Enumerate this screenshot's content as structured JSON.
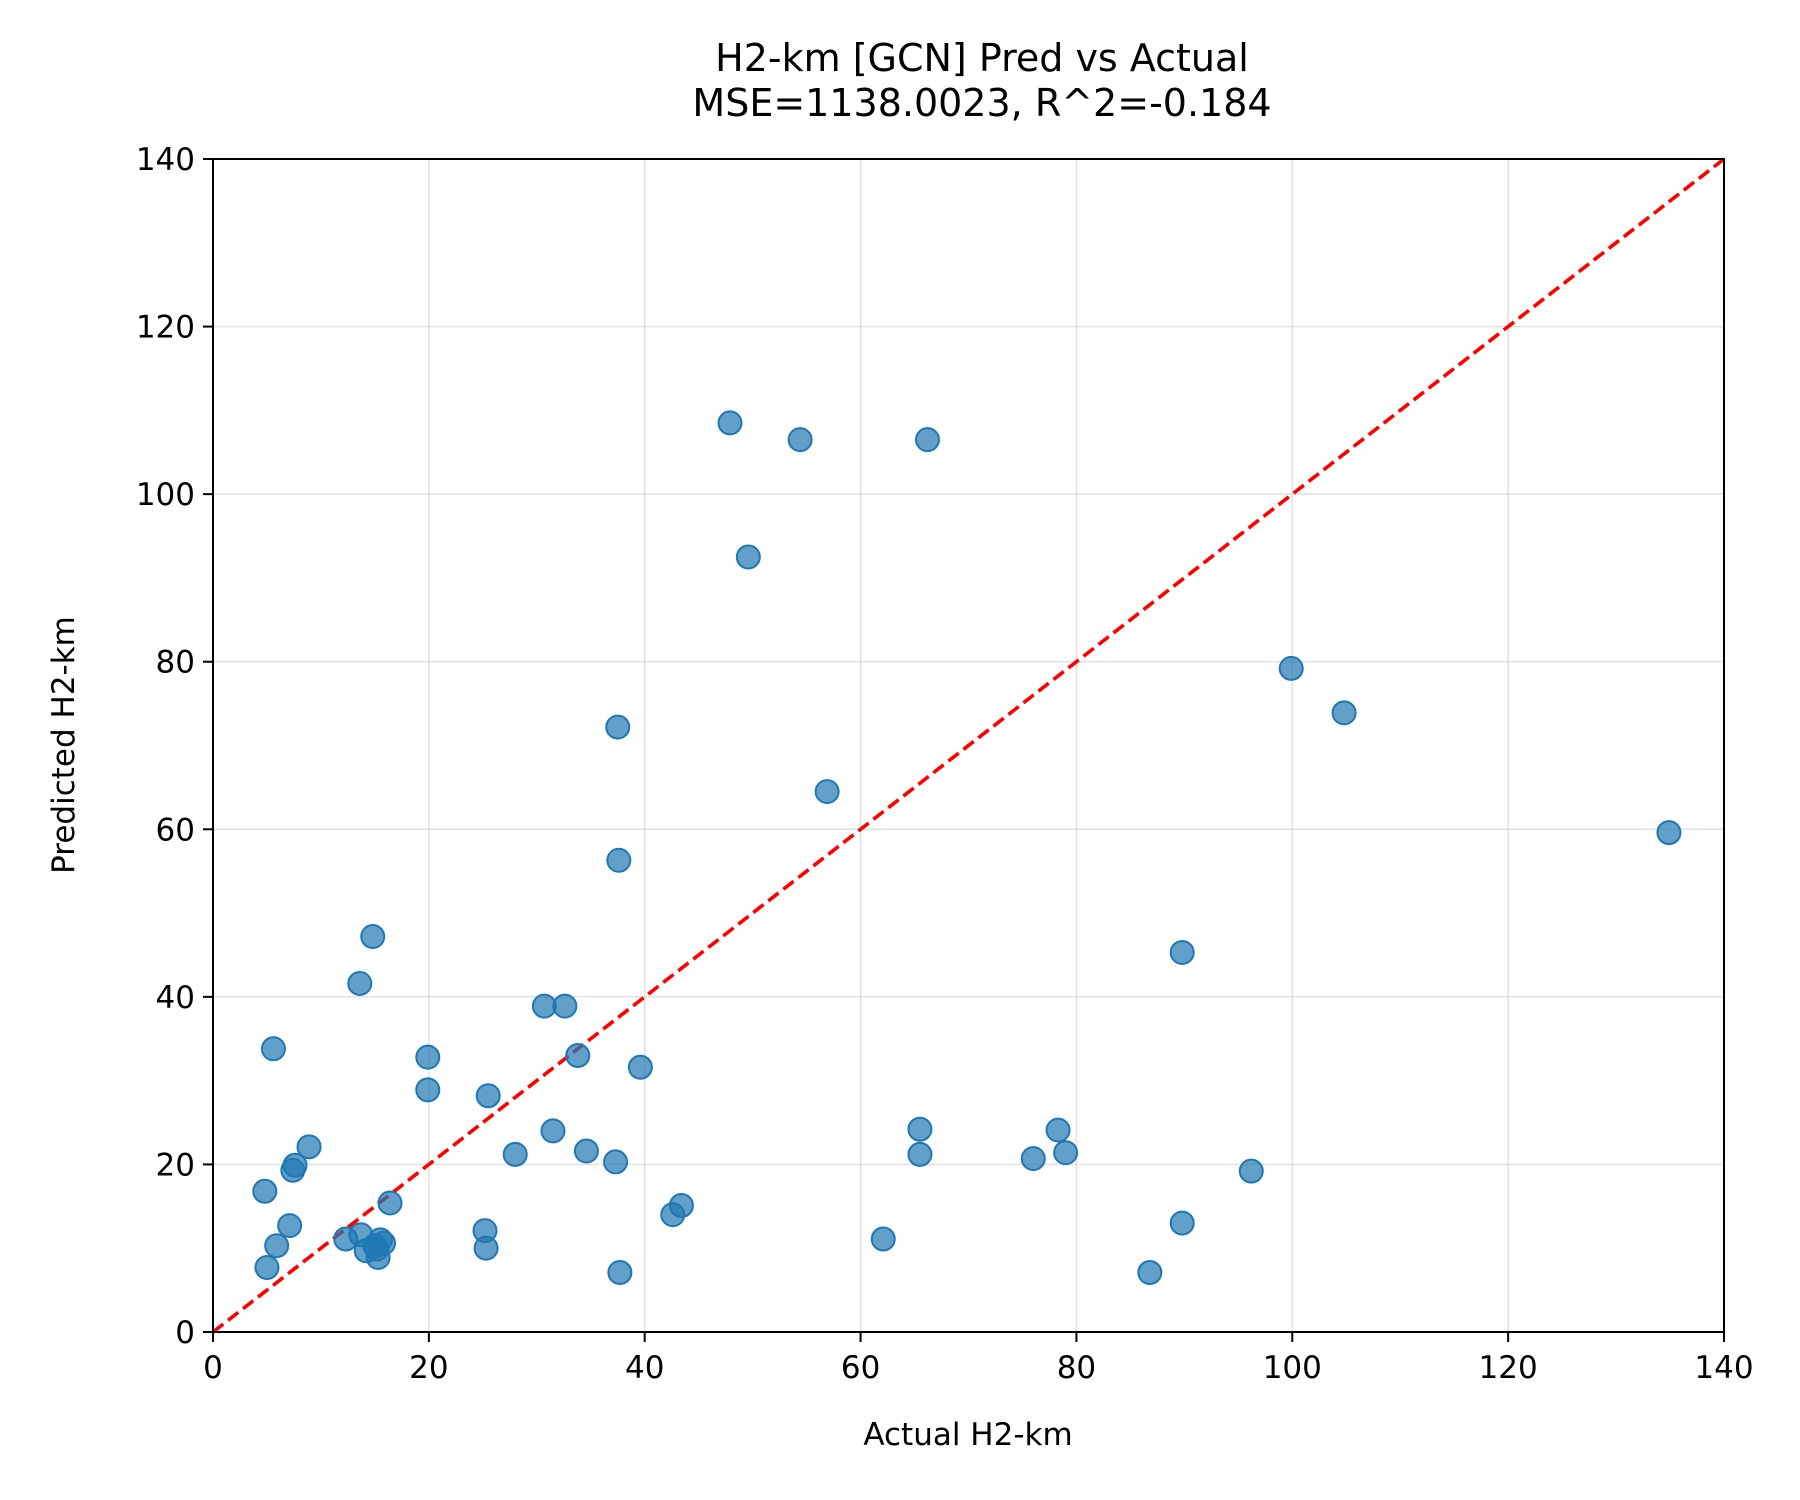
{
  "chart_data": {
    "type": "scatter",
    "title": "H2-km [GCN] Pred vs Actual",
    "subtitle": "MSE=1138.0023, R^2=-0.184",
    "xlabel": "Actual H2-km",
    "ylabel": "Predicted H2-km",
    "xlim": [
      0,
      140
    ],
    "ylim": [
      0,
      140
    ],
    "xticks": [
      "0",
      "20",
      "40",
      "60",
      "80",
      "100",
      "120",
      "140"
    ],
    "yticks": [
      "0",
      "20",
      "40",
      "60",
      "80",
      "100",
      "120",
      "140"
    ],
    "grid": true,
    "reference_line": {
      "style": "dashed",
      "color": "#ff0000",
      "from": [
        0,
        0
      ],
      "to": [
        140,
        140
      ]
    },
    "marker_color": "#1f77b4",
    "points": [
      [
        4.8,
        16.8
      ],
      [
        5.0,
        7.7
      ],
      [
        5.6,
        33.8
      ],
      [
        5.9,
        10.3
      ],
      [
        7.1,
        12.7
      ],
      [
        7.4,
        19.3
      ],
      [
        7.6,
        19.9
      ],
      [
        8.9,
        22.1
      ],
      [
        12.3,
        11.1
      ],
      [
        13.6,
        41.6
      ],
      [
        13.7,
        11.6
      ],
      [
        14.2,
        9.7
      ],
      [
        14.8,
        47.2
      ],
      [
        15.0,
        10.3
      ],
      [
        15.2,
        9.9
      ],
      [
        15.3,
        8.9
      ],
      [
        15.5,
        11.0
      ],
      [
        15.8,
        10.6
      ],
      [
        16.4,
        15.4
      ],
      [
        19.9,
        32.8
      ],
      [
        19.9,
        28.9
      ],
      [
        25.2,
        12.1
      ],
      [
        25.3,
        10.0
      ],
      [
        25.5,
        28.2
      ],
      [
        28.0,
        21.2
      ],
      [
        30.7,
        38.9
      ],
      [
        31.5,
        24.0
      ],
      [
        32.6,
        38.9
      ],
      [
        33.8,
        33.0
      ],
      [
        34.6,
        21.6
      ],
      [
        37.3,
        20.3
      ],
      [
        37.5,
        72.2
      ],
      [
        37.6,
        56.3
      ],
      [
        37.7,
        7.1
      ],
      [
        39.6,
        31.6
      ],
      [
        42.6,
        14.0
      ],
      [
        43.4,
        15.1
      ],
      [
        47.9,
        108.5
      ],
      [
        49.6,
        92.5
      ],
      [
        54.4,
        106.5
      ],
      [
        56.9,
        64.5
      ],
      [
        62.1,
        11.1
      ],
      [
        65.5,
        24.2
      ],
      [
        65.5,
        21.2
      ],
      [
        66.2,
        106.5
      ],
      [
        76.0,
        20.7
      ],
      [
        78.3,
        24.1
      ],
      [
        79.0,
        21.4
      ],
      [
        86.8,
        7.1
      ],
      [
        89.8,
        45.3
      ],
      [
        89.8,
        13.0
      ],
      [
        96.2,
        19.2
      ],
      [
        99.9,
        79.2
      ],
      [
        104.8,
        73.9
      ],
      [
        134.9,
        59.6
      ]
    ]
  }
}
